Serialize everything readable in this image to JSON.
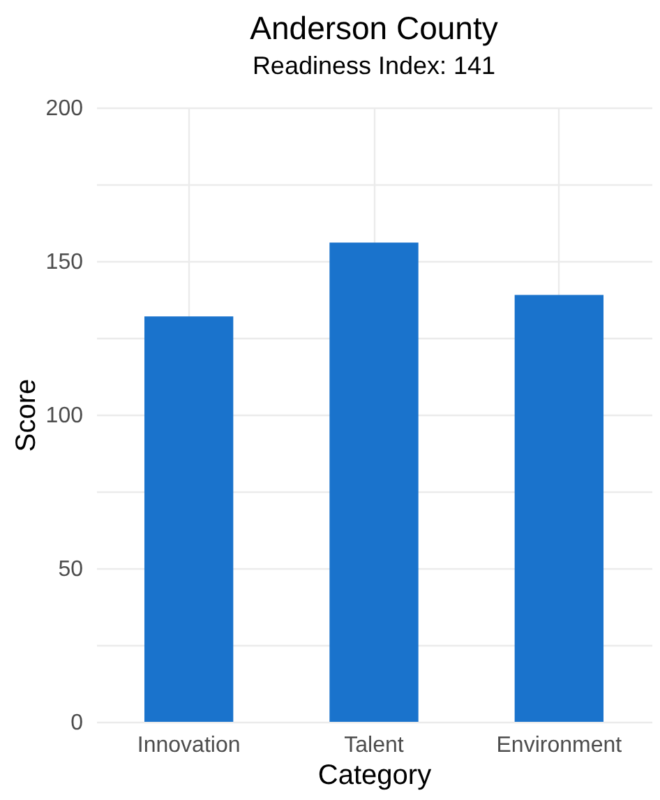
{
  "chart_data": {
    "type": "bar",
    "title": "Anderson  County",
    "subtitle": "Readiness Index: 141",
    "xlabel": "Category",
    "ylabel": "Score",
    "categories": [
      "Innovation",
      "Talent",
      "Environment"
    ],
    "values": [
      132,
      156,
      139
    ],
    "color": "#1a73cc",
    "ylim": [
      0,
      200
    ],
    "yticks": [
      0,
      {
        "value": 25,
        "label": null
      },
      50,
      {
        "value": 75,
        "label": null
      },
      100,
      {
        "value": 125,
        "label": null
      },
      150,
      {
        "value": 175,
        "label": null
      },
      200
    ],
    "grid": true
  }
}
